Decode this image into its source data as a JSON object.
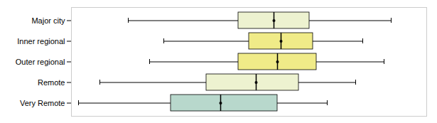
{
  "chart_data": {
    "type": "boxplot",
    "orientation": "horizontal",
    "categories": [
      "Major city",
      "Inner regional",
      "Outer regional",
      "Remote",
      "Very Remote"
    ],
    "boxes": [
      {
        "whislo": 16,
        "q1": 47,
        "med": 57,
        "q3": 67,
        "whishi": 90
      },
      {
        "whislo": 26,
        "q1": 50,
        "med": 59,
        "q3": 68,
        "whishi": 82
      },
      {
        "whislo": 22,
        "q1": 47,
        "med": 58,
        "q3": 69,
        "whishi": 88
      },
      {
        "whislo": 8,
        "q1": 38,
        "med": 52,
        "q3": 64,
        "whishi": 80
      },
      {
        "whislo": 2,
        "q1": 28,
        "med": 42,
        "q3": 58,
        "whishi": 72
      }
    ],
    "colors": [
      "#edf2d0",
      "#f0eb88",
      "#f0eb88",
      "#edf2d0",
      "#b8d8cc"
    ],
    "xlim": [
      0,
      100
    ],
    "tick_labels": "y"
  }
}
